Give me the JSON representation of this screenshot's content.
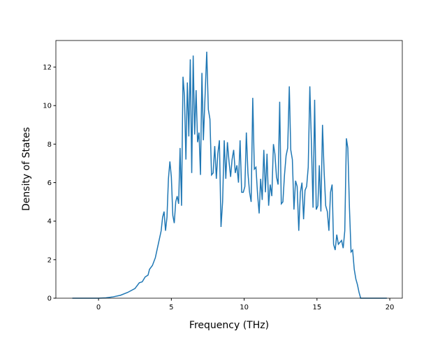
{
  "chart_data": {
    "type": "line",
    "x_label": "Frequency (THz)",
    "y_label": "Density of States",
    "xlim": [
      -2.93,
      20.86
    ],
    "ylim": [
      0,
      13.38
    ],
    "xticks": [
      0,
      5,
      10,
      15,
      20
    ],
    "yticks": [
      0,
      2,
      4,
      6,
      8,
      10,
      12
    ],
    "series": [
      {
        "color": "#1f77b4",
        "x": [
          -1.8,
          -1,
          0,
          0.5,
          1,
          1.5,
          2,
          2.5,
          2.8,
          3,
          3.2,
          3.4,
          3.5,
          3.7,
          3.9,
          4.1,
          4.3,
          4.4,
          4.5,
          4.6,
          4.7,
          4.8,
          4.9,
          5.0,
          5.1,
          5.2,
          5.3,
          5.4,
          5.5,
          5.6,
          5.7,
          5.8,
          5.9,
          6.0,
          6.1,
          6.2,
          6.3,
          6.4,
          6.5,
          6.6,
          6.7,
          6.8,
          6.9,
          7.0,
          7.1,
          7.2,
          7.43,
          7.54,
          7.65,
          7.76,
          7.87,
          7.98,
          8.09,
          8.19,
          8.3,
          8.41,
          8.52,
          8.63,
          8.74,
          8.85,
          8.96,
          9.07,
          9.17,
          9.28,
          9.39,
          9.5,
          9.61,
          9.72,
          9.83,
          9.94,
          10.05,
          10.15,
          10.26,
          10.37,
          10.48,
          10.59,
          10.7,
          10.81,
          10.92,
          11.03,
          11.13,
          11.24,
          11.35,
          11.46,
          11.57,
          11.68,
          11.79,
          11.9,
          12.01,
          12.11,
          12.22,
          12.33,
          12.44,
          12.55,
          12.66,
          12.77,
          12.88,
          12.99,
          13.1,
          13.2,
          13.31,
          13.42,
          13.53,
          13.64,
          13.75,
          13.86,
          13.97,
          14.08,
          14.18,
          14.29,
          14.4,
          14.51,
          14.62,
          14.73,
          14.84,
          14.95,
          15.06,
          15.16,
          15.27,
          15.38,
          15.49,
          15.6,
          15.71,
          15.82,
          15.93,
          16.04,
          16.14,
          16.25,
          16.36,
          16.47,
          16.58,
          16.69,
          16.8,
          16.91,
          17.02,
          17.12,
          17.23,
          17.34,
          17.45,
          17.56,
          17.67,
          17.78,
          17.89,
          18.0,
          18.5,
          19.8
        ],
        "values": [
          0,
          0,
          0,
          0.02,
          0.07,
          0.15,
          0.3,
          0.5,
          0.8,
          0.85,
          1.1,
          1.2,
          1.5,
          1.7,
          2.1,
          2.8,
          3.5,
          4.2,
          4.5,
          3.5,
          4.2,
          6.2,
          7.1,
          6.3,
          4.3,
          3.9,
          5.0,
          5.3,
          4.9,
          7.8,
          4.8,
          11.5,
          10.5,
          7.2,
          11.2,
          8.4,
          12.4,
          6.5,
          12.6,
          8.5,
          10.8,
          8.1,
          8.6,
          6.4,
          11.7,
          8.2,
          12.8,
          9.8,
          9.3,
          6.4,
          6.5,
          7.9,
          6.2,
          7.5,
          8.2,
          3.7,
          5.0,
          8.2,
          6.2,
          8.1,
          7.1,
          6.3,
          7.2,
          7.7,
          6.5,
          6.9,
          6.0,
          8.2,
          5.5,
          5.5,
          5.8,
          8.6,
          6.5,
          5.5,
          5.0,
          10.4,
          6.7,
          6.8,
          5.4,
          4.4,
          6.2,
          5.1,
          7.7,
          5.5,
          7.5,
          4.8,
          5.9,
          5.3,
          8.0,
          7.5,
          6.3,
          5.9,
          10.2,
          4.9,
          5.0,
          6.4,
          7.4,
          7.8,
          11.0,
          7.7,
          7.2,
          4.6,
          6.1,
          5.8,
          3.5,
          5.5,
          6.0,
          4.1,
          5.6,
          5.8,
          6.8,
          11.0,
          8.0,
          4.7,
          10.3,
          4.6,
          4.8,
          6.9,
          4.5,
          9.0,
          6.6,
          4.8,
          4.5,
          3.5,
          5.5,
          5.9,
          2.8,
          2.5,
          3.3,
          2.8,
          2.9,
          3.0,
          2.6,
          3.5,
          8.3,
          7.8,
          4.7,
          2.4,
          2.5,
          1.5,
          1.0,
          0.7,
          0.3,
          0,
          0,
          0
        ]
      }
    ]
  }
}
